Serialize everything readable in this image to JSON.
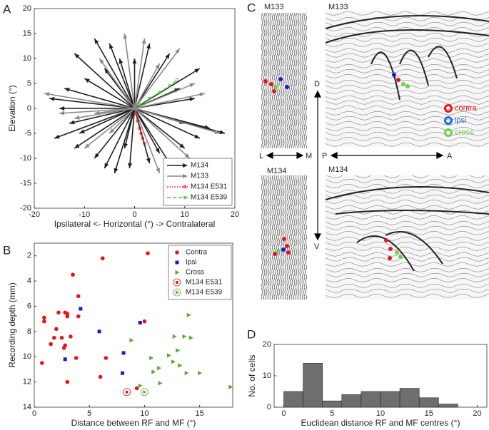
{
  "panel_labels": [
    "A",
    "B",
    "C",
    "D"
  ],
  "chart_data": [
    {
      "type": "arrows",
      "xlabel": "Ipsilateral <- Horizontal (°) -> Contralateral",
      "ylabel": "Elevation (°)",
      "xlim": [
        -20,
        20
      ],
      "xticks": [
        -20,
        -10,
        0,
        10,
        20
      ],
      "ylim": [
        -20,
        20
      ],
      "yticks": [
        -20,
        -15,
        -10,
        -5,
        0,
        5,
        10,
        15,
        20
      ],
      "legend": "lower right",
      "series": [
        {
          "name": "M134",
          "color": "#1f1f1f",
          "style": "arrow",
          "x": [
            -12,
            -8,
            -5,
            -3,
            -10,
            -14,
            -15,
            -13,
            -11,
            -12,
            -8,
            -6,
            -4,
            -2,
            -1,
            3,
            5,
            7,
            10,
            13,
            15,
            10,
            12,
            13,
            7,
            3,
            0,
            -6,
            -16,
            -17,
            18,
            9
          ],
          "y": [
            11,
            14,
            13,
            10,
            6,
            4,
            0,
            -3,
            -5,
            -8,
            -10,
            -12,
            -13,
            -8,
            -12,
            -11,
            -9,
            -11,
            -8,
            -6,
            -4,
            -3,
            2,
            8,
            11,
            13,
            10,
            8,
            -6,
            2,
            -5,
            4
          ]
        },
        {
          "name": "M133",
          "color": "#8a8a8a",
          "style": "arrow",
          "x": [
            -18,
            -15,
            -12,
            -8,
            -10,
            -2,
            2,
            5,
            9,
            12,
            14,
            17,
            5,
            -5,
            -7,
            11
          ],
          "y": [
            3,
            -1,
            -2,
            -1,
            -8,
            15,
            14,
            9,
            12,
            5,
            3,
            -5,
            -13,
            -5,
            10,
            -10
          ]
        },
        {
          "name": "M134 E531",
          "color": "#e8141b",
          "style": "dotted",
          "x": [
            0.2,
            0.6,
            1,
            1.3,
            1.6,
            2
          ],
          "y": [
            -1,
            -2.5,
            -4,
            -5,
            -6,
            -7
          ]
        },
        {
          "name": "M134 E539",
          "color": "#4fc33a",
          "style": "dashed",
          "x": [
            1,
            3,
            5,
            7,
            8.5
          ],
          "y": [
            0.7,
            2,
            3.2,
            4.5,
            5.7
          ]
        }
      ]
    },
    {
      "type": "scatter",
      "xlabel": "Distance between RF and MF (°)",
      "ylabel": "Recording depth (mm)",
      "xlim": [
        0,
        18
      ],
      "xticks": [
        0,
        5,
        10,
        15
      ],
      "ylim": [
        1,
        14
      ],
      "y_reversed": true,
      "yticks": [
        2,
        4,
        6,
        8,
        10,
        12,
        14
      ],
      "legend": "upper right",
      "series": [
        {
          "name": "Contra",
          "color": "#e8141b",
          "marker": "circle",
          "x": [
            0.7,
            0.9,
            0.9,
            1.5,
            1.8,
            2.0,
            2.2,
            2.5,
            2.7,
            2.8,
            2.8,
            3.0,
            3.0,
            3.0,
            3.3,
            3.5,
            3.8,
            4.0,
            4.0,
            6.2,
            6.0,
            6.5,
            10.0,
            10.3,
            9.3
          ],
          "y": [
            10.5,
            7.2,
            6.9,
            9.0,
            8.5,
            7.8,
            6.5,
            8.5,
            9.3,
            9.1,
            6.5,
            6.8,
            12.0,
            6.6,
            8.4,
            3.5,
            10.1,
            5.2,
            6.8,
            2.2,
            11.6,
            10.1,
            7.2,
            1.8,
            12.5
          ]
        },
        {
          "name": "Ipsi",
          "color": "#1a1adb",
          "marker": "square",
          "x": [
            2.8,
            4.2,
            5.9,
            8.1,
            8.0,
            9.6
          ],
          "y": [
            10.2,
            6.2,
            8.0,
            9.7,
            11.3,
            7.3
          ]
        },
        {
          "name": "Cross",
          "color": "#5aab3c",
          "marker": "triangle",
          "x": [
            8.8,
            9.6,
            10.6,
            10.8,
            11.3,
            11.4,
            12.2,
            12.7,
            12.6,
            13.0,
            13.6,
            13.8,
            13.2,
            14.0,
            14.2,
            15.0,
            17.8
          ],
          "y": [
            8.7,
            12.3,
            10.1,
            11.2,
            10.9,
            12.1,
            9.9,
            8.4,
            10.4,
            9.5,
            8.4,
            11.3,
            10.7,
            6.7,
            8.5,
            11.3,
            12.4
          ]
        },
        {
          "name": "M134 E531",
          "color": "#e8141b",
          "marker": "ring-dot",
          "x": [
            8.4
          ],
          "y": [
            12.8
          ]
        },
        {
          "name": "M134 E539",
          "color": "#5aab3c",
          "marker": "ring-triangle",
          "x": [
            10.0
          ],
          "y": [
            12.8
          ]
        }
      ]
    },
    {
      "type": "histogram",
      "xlabel": "Euclidean distance RF and MF centres (°)",
      "ylabel": "No. of cells",
      "bins": [
        0,
        2,
        4,
        6,
        8,
        10,
        12,
        14,
        16,
        18
      ],
      "values": [
        5,
        14,
        2,
        4,
        5,
        5,
        6,
        3,
        1
      ],
      "color": "#6e6e6e",
      "xlim": [
        -1,
        21
      ],
      "xticks": [
        0,
        5,
        10,
        15,
        20
      ],
      "ylim": [
        0,
        20
      ],
      "yticks": [
        0,
        10,
        20
      ]
    }
  ],
  "panel_c": {
    "titles": [
      "M133",
      "M133",
      "M134",
      "M134"
    ],
    "directions": [
      "D",
      "V",
      "L",
      "M",
      "P",
      "A"
    ],
    "legend": [
      {
        "name": "contra",
        "color": "#e8141b"
      },
      {
        "name": "ipsi",
        "color": "#1a6fdb"
      },
      {
        "name": "cross",
        "color": "#6fd04a"
      }
    ]
  }
}
